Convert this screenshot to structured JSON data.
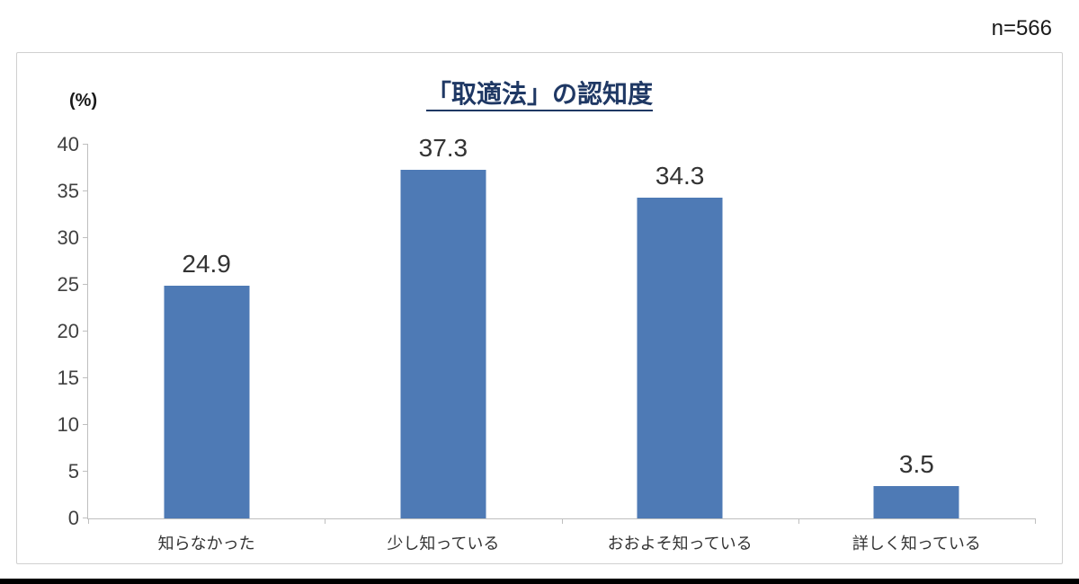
{
  "header": {
    "sample_size": "n=566"
  },
  "chart_data": {
    "type": "bar",
    "title": "「取適法」の認知度",
    "unit_label": "(%)",
    "categories": [
      "知らなかった",
      "少し知っている",
      "おおよそ知っている",
      "詳しく知っている"
    ],
    "values": [
      24.9,
      37.3,
      34.3,
      3.5
    ],
    "value_labels": [
      "24.9",
      "37.3",
      "34.3",
      "3.5"
    ],
    "ylim": [
      0,
      40
    ],
    "yticks": [
      0,
      5,
      10,
      15,
      20,
      25,
      30,
      35,
      40
    ],
    "bar_color": "#4e7ab5",
    "grid": false,
    "legend": "none",
    "xlabel": "",
    "ylabel": "(%)"
  }
}
